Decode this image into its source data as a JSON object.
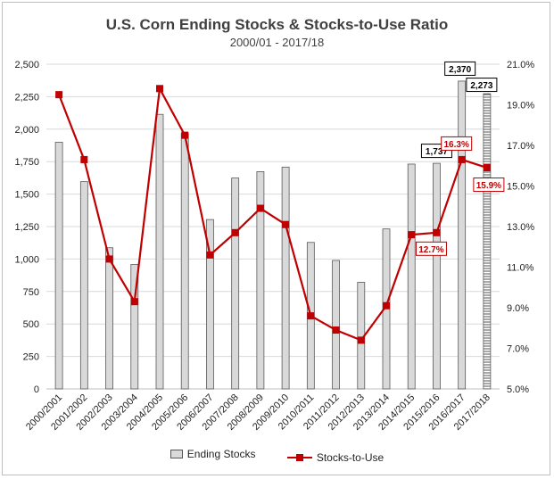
{
  "chart_data": {
    "type": "bar",
    "title": "U.S. Corn Ending Stocks & Stocks-to-Use Ratio",
    "subtitle": "2000/01 - 2017/18",
    "categories": [
      "2000/2001",
      "2001/2002",
      "2002/2003",
      "2003/2004",
      "2004/2005",
      "2005/2006",
      "2006/2007",
      "2007/2008",
      "2008/2009",
      "2009/2010",
      "2010/2011",
      "2011/2012",
      "2012/2013",
      "2013/2014",
      "2014/2015",
      "2015/2016",
      "2016/2017",
      "2017/2018"
    ],
    "series": [
      {
        "name": "Ending Stocks",
        "type": "bar",
        "axis": "left",
        "values": [
          1899,
          1596,
          1087,
          958,
          2114,
          1967,
          1304,
          1624,
          1673,
          1708,
          1128,
          989,
          821,
          1232,
          1731,
          1737,
          2370,
          2273
        ]
      },
      {
        "name": "Stocks-to-Use",
        "type": "line",
        "axis": "right",
        "values": [
          19.5,
          16.3,
          11.4,
          9.3,
          19.8,
          17.5,
          11.6,
          12.7,
          13.9,
          13.1,
          8.6,
          7.9,
          7.4,
          9.1,
          12.6,
          12.7,
          16.3,
          15.9
        ]
      }
    ],
    "y_left": {
      "min": 0,
      "max": 2500,
      "step": 250,
      "ticks": [
        "0",
        "250",
        "500",
        "750",
        "1,000",
        "1,250",
        "1,500",
        "1,750",
        "2,000",
        "2,250",
        "2,500"
      ]
    },
    "y_right": {
      "min": 5,
      "max": 21,
      "step": 2,
      "ticks": [
        "5.0%",
        "7.0%",
        "9.0%",
        "11.0%",
        "13.0%",
        "15.0%",
        "17.0%",
        "19.0%",
        "21.0%"
      ]
    },
    "grid": true,
    "legend_position": "bottom",
    "annotations": [
      {
        "series": 0,
        "index": 15,
        "text": "1,737",
        "style": "black"
      },
      {
        "series": 0,
        "index": 16,
        "text": "2,370",
        "style": "black"
      },
      {
        "series": 0,
        "index": 17,
        "text": "2,273",
        "style": "black"
      },
      {
        "series": 1,
        "index": 15,
        "text": "12.7%",
        "style": "red"
      },
      {
        "series": 1,
        "index": 16,
        "text": "16.3%",
        "style": "red"
      },
      {
        "series": 1,
        "index": 17,
        "text": "15.9%",
        "style": "red"
      }
    ],
    "colors": {
      "bar_fill": "#d9d9d9",
      "bar_stroke": "#595959",
      "line": "#c00000",
      "grid": "#d9d9d9",
      "text": "#404040"
    }
  }
}
